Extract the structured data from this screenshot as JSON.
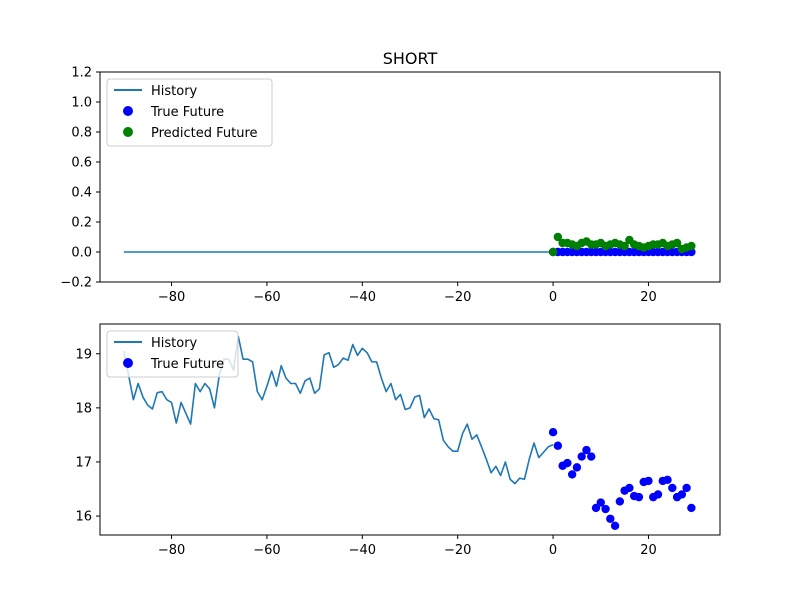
{
  "chart_data": [
    {
      "type": "line",
      "title": "SHORT",
      "xlabel": "",
      "ylabel": "",
      "xlim": [
        -95,
        35
      ],
      "ylim": [
        -0.2,
        1.2
      ],
      "xticks": [
        -80,
        -60,
        -40,
        -20,
        0,
        20
      ],
      "yticks": [
        -0.2,
        0.0,
        0.2,
        0.4,
        0.6,
        0.8,
        1.0,
        1.2
      ],
      "xtick_labels": [
        "−80",
        "−60",
        "−40",
        "−20",
        "0",
        "20"
      ],
      "ytick_labels": [
        "−0.2",
        "0.0",
        "0.2",
        "0.4",
        "0.6",
        "0.8",
        "1.0",
        "1.2"
      ],
      "legend": {
        "placement": "upper-left",
        "entries": [
          "History",
          "True Future",
          "Predicted Future"
        ]
      },
      "series": [
        {
          "name": "History",
          "kind": "line",
          "color": "#1f77b4",
          "x": [
            -90,
            0
          ],
          "y": [
            0,
            0
          ]
        },
        {
          "name": "True Future",
          "kind": "scatter",
          "color": "#0000ff",
          "x": [
            0,
            1,
            2,
            3,
            4,
            5,
            6,
            7,
            8,
            9,
            10,
            11,
            12,
            13,
            14,
            15,
            16,
            17,
            18,
            19,
            20,
            21,
            22,
            23,
            24,
            25,
            26,
            27,
            28,
            29
          ],
          "y": [
            0,
            0,
            0,
            0,
            0,
            0,
            0,
            0,
            0,
            0,
            0,
            0,
            0,
            0,
            0,
            0,
            0,
            0,
            0,
            0,
            0,
            0,
            0,
            0,
            0,
            0,
            0,
            0,
            0,
            0
          ]
        },
        {
          "name": "Predicted Future",
          "kind": "scatter",
          "color": "#008000",
          "x": [
            0,
            1,
            2,
            3,
            4,
            5,
            6,
            7,
            8,
            9,
            10,
            11,
            12,
            13,
            14,
            15,
            16,
            17,
            18,
            19,
            20,
            21,
            22,
            23,
            24,
            25,
            26,
            27,
            28,
            29
          ],
          "y": [
            0.0,
            0.1,
            0.06,
            0.06,
            0.05,
            0.04,
            0.06,
            0.07,
            0.05,
            0.05,
            0.06,
            0.04,
            0.05,
            0.06,
            0.05,
            0.04,
            0.08,
            0.05,
            0.04,
            0.03,
            0.04,
            0.05,
            0.05,
            0.06,
            0.04,
            0.05,
            0.06,
            0.02,
            0.03,
            0.04
          ]
        }
      ]
    },
    {
      "type": "line",
      "title": "",
      "xlabel": "",
      "ylabel": "",
      "xlim": [
        -95,
        35
      ],
      "ylim": [
        15.65,
        19.55
      ],
      "xticks": [
        -80,
        -60,
        -40,
        -20,
        0,
        20
      ],
      "yticks": [
        16,
        17,
        18,
        19
      ],
      "xtick_labels": [
        "−80",
        "−60",
        "−40",
        "−20",
        "0",
        "20"
      ],
      "ytick_labels": [
        "16",
        "17",
        "18",
        "19"
      ],
      "legend": {
        "placement": "upper-left",
        "entries": [
          "History",
          "True Future"
        ]
      },
      "series": [
        {
          "name": "History",
          "kind": "line",
          "color": "#1f77b4",
          "x": [
            -90,
            -89,
            -88,
            -87,
            -86,
            -85,
            -84,
            -83,
            -82,
            -81,
            -80,
            -79,
            -78,
            -77,
            -76,
            -75,
            -74,
            -73,
            -72,
            -71,
            -70,
            -69,
            -68,
            -67,
            -66,
            -65,
            -64,
            -63,
            -62,
            -61,
            -60,
            -59,
            -58,
            -57,
            -56,
            -55,
            -54,
            -53,
            -52,
            -51,
            -50,
            -49,
            -48,
            -47,
            -46,
            -45,
            -44,
            -43,
            -42,
            -41,
            -40,
            -39,
            -38,
            -37,
            -36,
            -35,
            -34,
            -33,
            -32,
            -31,
            -30,
            -29,
            -28,
            -27,
            -26,
            -25,
            -24,
            -23,
            -22,
            -21,
            -20,
            -19,
            -18,
            -17,
            -16,
            -15,
            -14,
            -13,
            -12,
            -11,
            -10,
            -9,
            -8,
            -7,
            -6,
            -5,
            -4,
            -3,
            -2,
            -1,
            0
          ],
          "y": [
            19.05,
            18.6,
            18.15,
            18.45,
            18.2,
            18.05,
            17.98,
            18.28,
            18.3,
            18.15,
            18.1,
            17.72,
            18.1,
            17.9,
            17.7,
            18.45,
            18.3,
            18.45,
            18.35,
            18.0,
            18.6,
            18.9,
            18.9,
            18.7,
            19.32,
            18.9,
            18.9,
            18.85,
            18.3,
            18.15,
            18.4,
            18.68,
            18.4,
            18.78,
            18.55,
            18.45,
            18.45,
            18.27,
            18.5,
            18.55,
            18.27,
            18.35,
            18.98,
            19.02,
            18.75,
            18.8,
            18.92,
            18.88,
            19.17,
            18.97,
            19.1,
            19.02,
            18.85,
            18.85,
            18.55,
            18.3,
            18.45,
            18.15,
            18.25,
            17.97,
            18.0,
            18.2,
            18.23,
            17.82,
            17.98,
            17.8,
            17.78,
            17.4,
            17.28,
            17.2,
            17.2,
            17.52,
            17.7,
            17.42,
            17.5,
            17.28,
            17.05,
            16.8,
            16.92,
            16.75,
            17.0,
            16.68,
            16.6,
            16.7,
            16.68,
            17.05,
            17.35,
            17.08,
            17.18,
            17.28,
            17.32
          ]
        },
        {
          "name": "True Future",
          "kind": "scatter",
          "color": "#0000ff",
          "x": [
            0,
            1,
            2,
            3,
            4,
            5,
            6,
            7,
            8,
            9,
            10,
            11,
            12,
            13,
            14,
            15,
            16,
            17,
            18,
            19,
            20,
            21,
            22,
            23,
            24,
            25,
            26,
            27,
            28,
            29
          ],
          "y": [
            17.55,
            17.3,
            16.93,
            16.98,
            16.77,
            16.9,
            17.1,
            17.22,
            17.1,
            16.15,
            16.25,
            16.13,
            15.95,
            15.82,
            16.27,
            16.47,
            16.52,
            16.37,
            16.35,
            16.63,
            16.65,
            16.35,
            16.4,
            16.65,
            16.67,
            16.52,
            16.35,
            16.4,
            16.52,
            16.15
          ]
        }
      ]
    }
  ]
}
